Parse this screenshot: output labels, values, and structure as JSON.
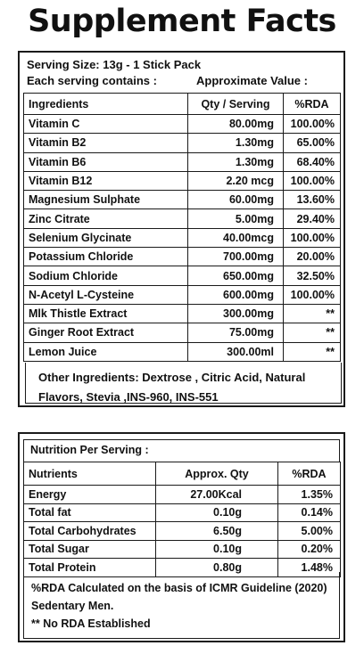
{
  "title": "Supplement Facts",
  "supplement": {
    "serving_size": "Serving Size: 13g - 1 Stick Pack",
    "each_serving": "Each serving contains :",
    "approx_value": "Approximate  Value :",
    "headers": {
      "ingredient": "Ingredients",
      "qty": "Qty / Serving",
      "rda": "%RDA"
    },
    "rows": [
      {
        "name": "Vitamin C",
        "qty": "80.00mg",
        "rda": "100.00%"
      },
      {
        "name": "Vitamin B2",
        "qty": "1.30mg",
        "rda": "65.00%"
      },
      {
        "name": "Vitamin B6",
        "qty": "1.30mg",
        "rda": "68.40%"
      },
      {
        "name": "Vitamin B12",
        "qty": "2.20 mcg",
        "rda": "100.00%"
      },
      {
        "name": "Magnesium Sulphate",
        "qty": "60.00mg",
        "rda": "13.60%"
      },
      {
        "name": "Zinc Citrate",
        "qty": "5.00mg",
        "rda": "29.40%"
      },
      {
        "name": "Selenium Glycinate",
        "qty": "40.00mcg",
        "rda": "100.00%"
      },
      {
        "name": "Potassium Chloride",
        "qty": "700.00mg",
        "rda": "20.00%"
      },
      {
        "name": "Sodium Chloride",
        "qty": "650.00mg",
        "rda": "32.50%"
      },
      {
        "name": "N-Acetyl L-Cysteine",
        "qty": "600.00mg",
        "rda": "100.00%"
      },
      {
        "name": "Mlk Thistle Extract",
        "qty": "300.00mg",
        "rda": "**"
      },
      {
        "name": "Ginger Root Extract",
        "qty": "75.00mg",
        "rda": "**"
      },
      {
        "name": "Lemon Juice",
        "qty": "300.00ml",
        "rda": "**"
      }
    ],
    "other_ingredients": "Other Ingredients: Dextrose , Citric Acid, Natural Flavors, Stevia ,INS-960, INS-551"
  },
  "nutrition": {
    "header": "Nutrition Per Serving :",
    "headers": {
      "nutrient": "Nutrients",
      "qty": "Approx. Qty",
      "rda": "%RDA"
    },
    "rows": [
      {
        "name": "Energy",
        "qty": "27.00Kcal",
        "rda": "1.35%"
      },
      {
        "name": "Total fat",
        "qty": "0.10g",
        "rda": "0.14%"
      },
      {
        "name": "Total Carbohydrates",
        "qty": "6.50g",
        "rda": "5.00%"
      },
      {
        "name": "Total Sugar",
        "qty": "0.10g",
        "rda": "0.20%"
      },
      {
        "name": "Total Protein",
        "qty": "0.80g",
        "rda": "1.48%"
      }
    ],
    "footnote_line1": "%RDA Calculated on the basis of ICMR Guideline (2020)",
    "footnote_line2": "Sedentary Men.",
    "footnote_line3": "** No RDA Established"
  }
}
